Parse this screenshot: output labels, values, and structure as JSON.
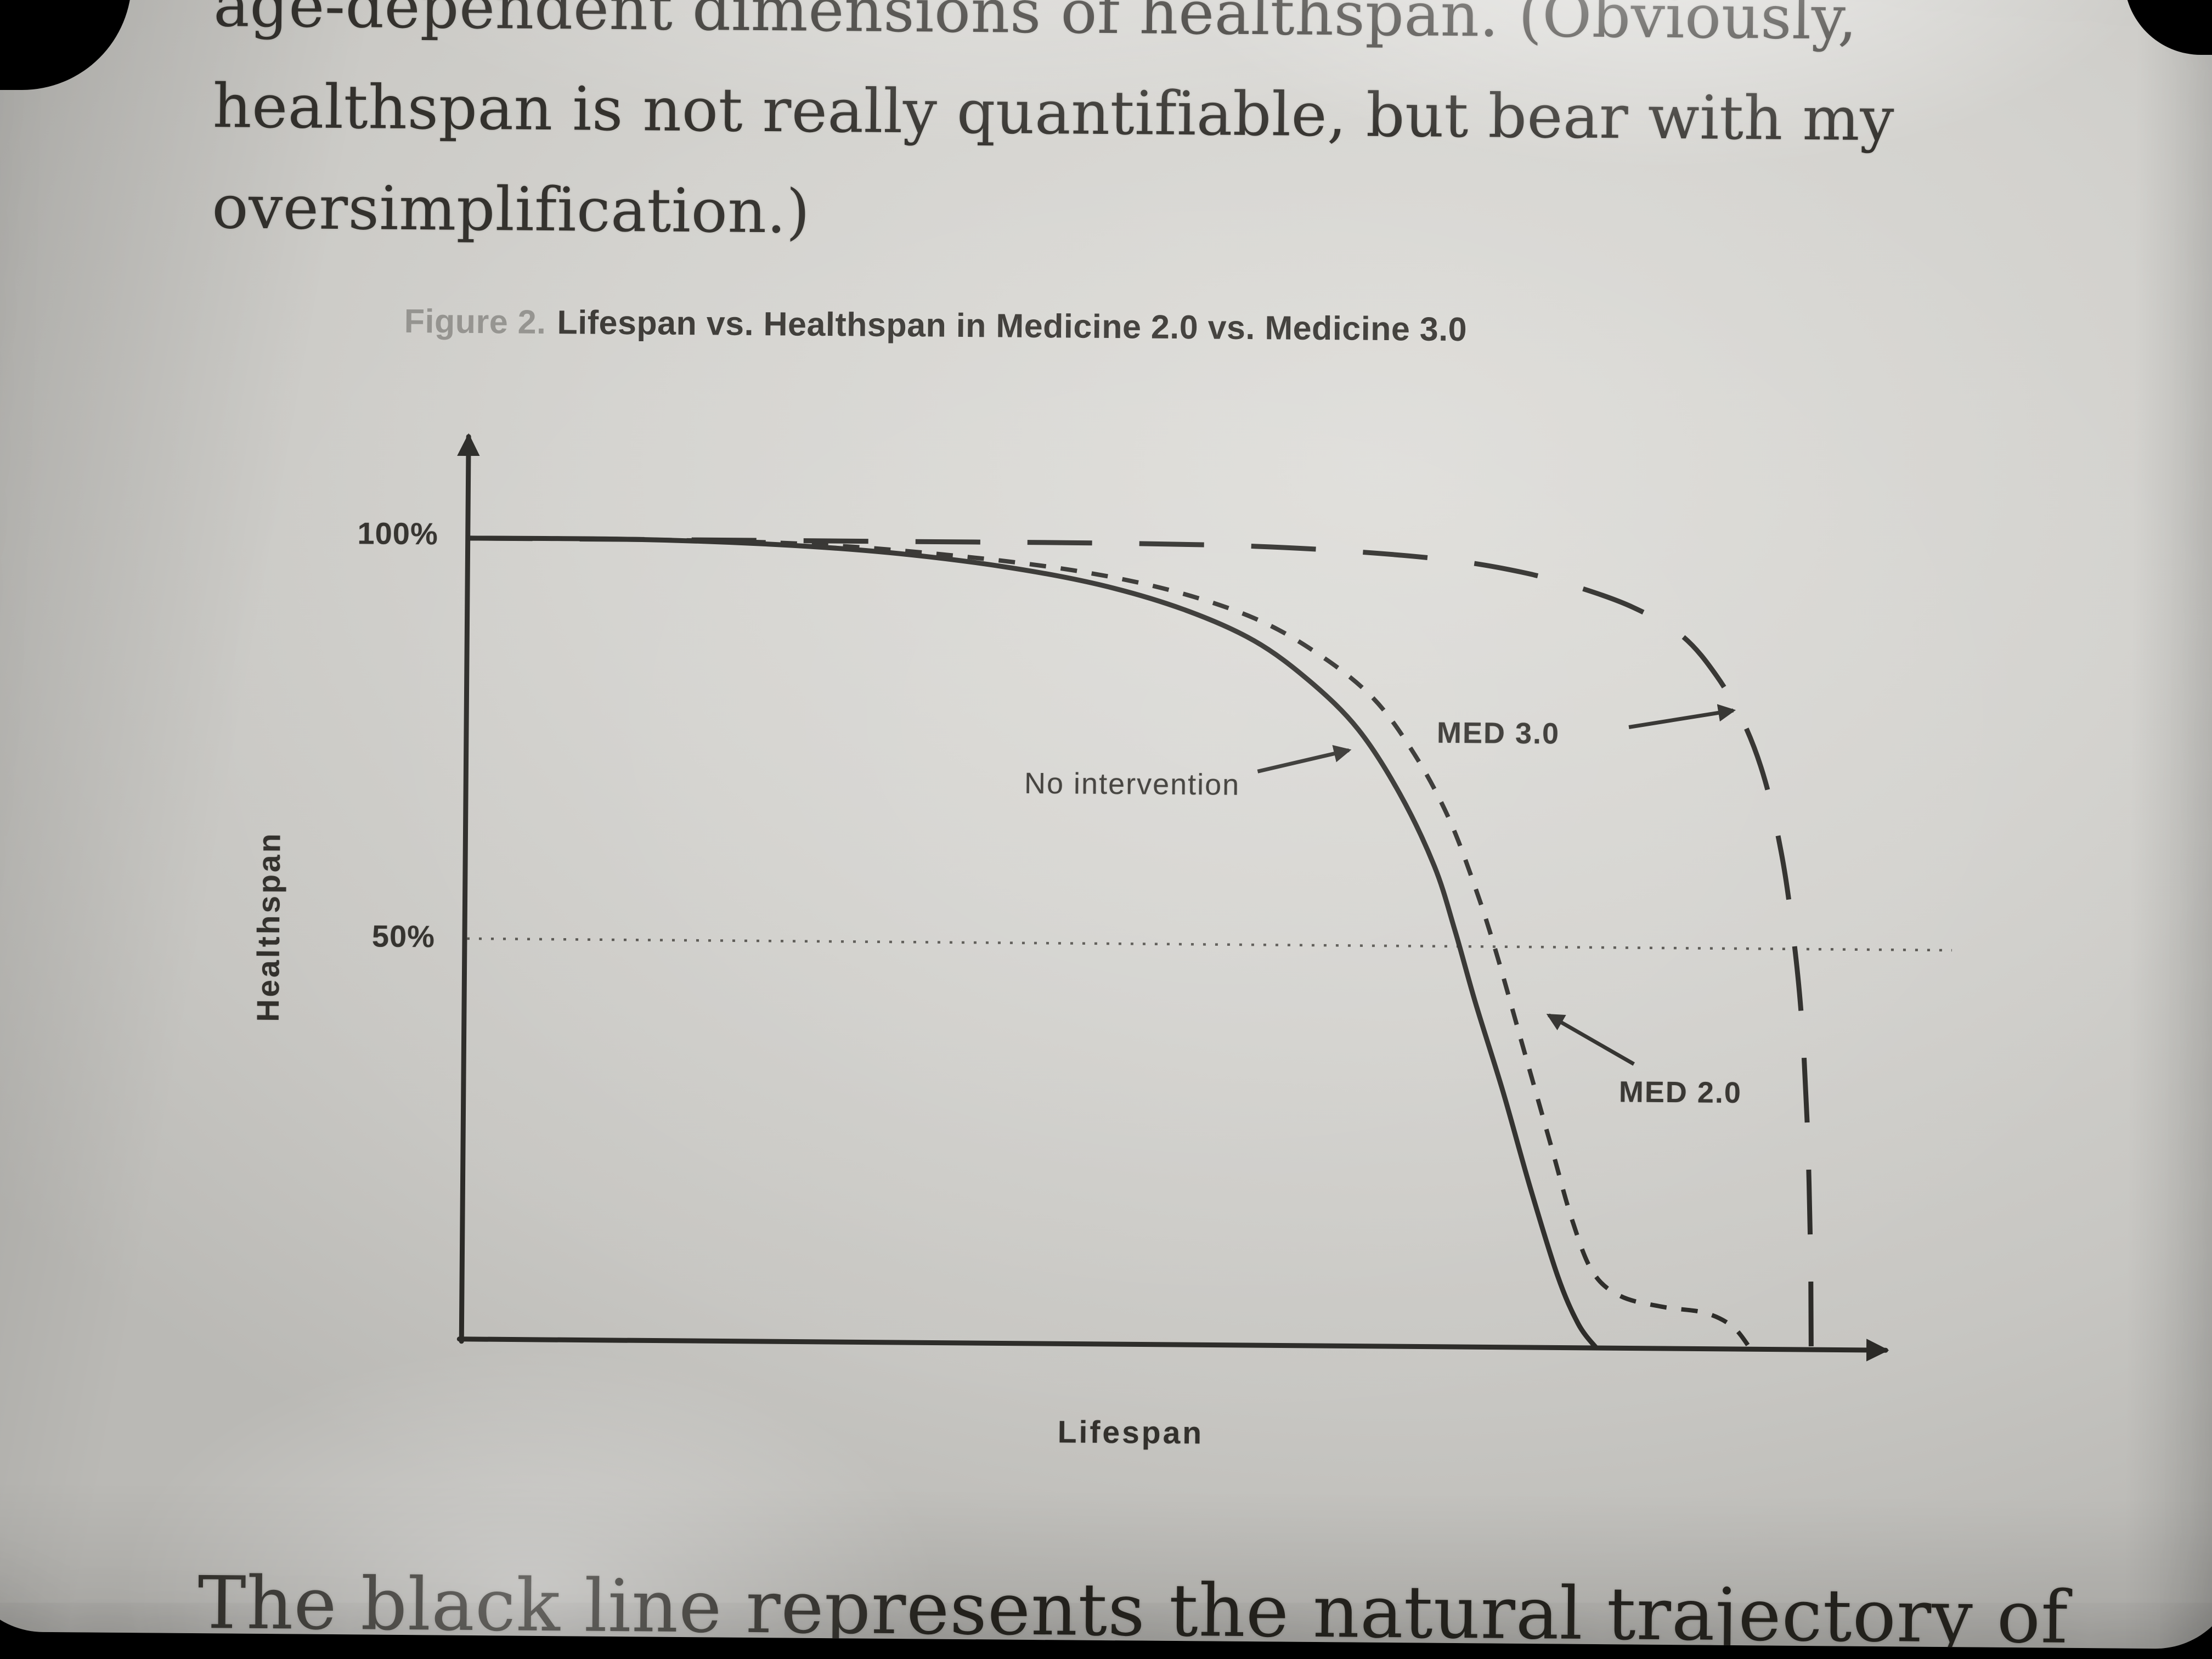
{
  "colors": {
    "paper": "#d3d2ce",
    "ink": "#33312d",
    "chart_ink": "#2b2a27",
    "caption_gray": "#94938f",
    "bezel": "#000000"
  },
  "page_text": {
    "line1": "age-dependent dimensions of healthspan. (Obviously,",
    "line2": "healthspan is not really quantifiable, but bear with my",
    "line3": "oversimplification.)",
    "bottom_line": "The black line represents the natural trajectory of"
  },
  "figure_caption": {
    "label": "Figure 2.",
    "title": "Lifespan vs. Healthspan in Medicine 2.0 vs. Medicine 3.0"
  },
  "chart_data": {
    "type": "line",
    "title": "Figure 2. Lifespan vs. Healthspan in Medicine 2.0 vs. Medicine 3.0",
    "xlabel": "Lifespan",
    "ylabel": "Healthspan",
    "xlim": [
      0,
      1
    ],
    "ylim": [
      0,
      100
    ],
    "x_axis": {
      "label": "Lifespan",
      "numeric_ticks": false,
      "arrow": true
    },
    "y_axis": {
      "label": "Healthspan",
      "arrow": true,
      "ticks": [
        {
          "value": 100,
          "label": "100%"
        },
        {
          "value": 50,
          "label": "50%"
        }
      ]
    },
    "reference_lines": [
      {
        "axis": "y",
        "value": 50,
        "style": "dotted"
      }
    ],
    "legend": "none",
    "series": [
      {
        "name": "No intervention",
        "line_style": "solid",
        "points": [
          [
            0,
            100
          ],
          [
            0.12,
            100
          ],
          [
            0.22,
            99.5
          ],
          [
            0.3,
            98.6
          ],
          [
            0.38,
            97
          ],
          [
            0.45,
            94.8
          ],
          [
            0.51,
            91.8
          ],
          [
            0.56,
            88
          ],
          [
            0.6,
            83
          ],
          [
            0.635,
            77
          ],
          [
            0.665,
            69
          ],
          [
            0.69,
            60
          ],
          [
            0.705,
            52
          ],
          [
            0.72,
            43
          ],
          [
            0.74,
            32
          ],
          [
            0.76,
            20
          ],
          [
            0.78,
            9
          ],
          [
            0.795,
            3
          ],
          [
            0.808,
            0
          ]
        ]
      },
      {
        "name": "MED 2.0",
        "line_style": "short-dash",
        "points": [
          [
            0,
            100
          ],
          [
            0.12,
            100
          ],
          [
            0.24,
            99.6
          ],
          [
            0.34,
            98.4
          ],
          [
            0.43,
            96.6
          ],
          [
            0.5,
            94.2
          ],
          [
            0.56,
            90.8
          ],
          [
            0.605,
            86.5
          ],
          [
            0.645,
            81
          ],
          [
            0.675,
            74
          ],
          [
            0.7,
            66
          ],
          [
            0.72,
            57
          ],
          [
            0.735,
            49
          ],
          [
            0.755,
            37
          ],
          [
            0.775,
            25
          ],
          [
            0.79,
            16
          ],
          [
            0.805,
            9.5
          ],
          [
            0.825,
            6.5
          ],
          [
            0.855,
            5.2
          ],
          [
            0.885,
            4.5
          ],
          [
            0.905,
            2.8
          ],
          [
            0.918,
            0
          ]
        ]
      },
      {
        "name": "MED 3.0",
        "line_style": "long-dash",
        "points": [
          [
            0,
            100
          ],
          [
            0.3,
            100
          ],
          [
            0.45,
            100
          ],
          [
            0.55,
            99.8
          ],
          [
            0.63,
            99.2
          ],
          [
            0.7,
            98.2
          ],
          [
            0.75,
            96.8
          ],
          [
            0.79,
            95
          ],
          [
            0.83,
            92.5
          ],
          [
            0.865,
            89
          ],
          [
            0.89,
            84
          ],
          [
            0.91,
            78
          ],
          [
            0.925,
            71
          ],
          [
            0.937,
            62
          ],
          [
            0.945,
            53
          ],
          [
            0.952,
            42
          ],
          [
            0.957,
            28
          ],
          [
            0.96,
            12
          ],
          [
            0.961,
            0
          ]
        ]
      }
    ],
    "annotations": [
      {
        "text": "No intervention",
        "points_to": "No intervention",
        "arrow_direction": "right"
      },
      {
        "text": "MED 3.0",
        "points_to": "MED 3.0",
        "arrow_direction": "up-right"
      },
      {
        "text": "MED 2.0",
        "points_to": "MED 2.0",
        "arrow_direction": "up-left"
      }
    ]
  }
}
